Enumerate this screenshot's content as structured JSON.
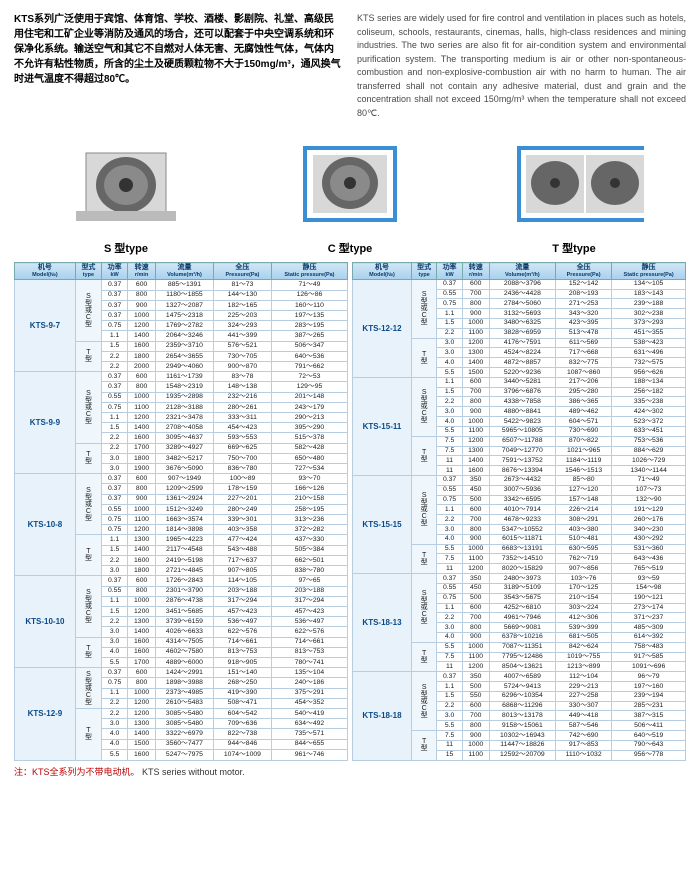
{
  "intro": {
    "cn": "KTS系列广泛使用于宾馆、体育馆、学校、酒楼、影剧院、礼堂、高级民用住宅和工矿企业等消防及通风的场合，还可以配套于中央空调系统和环保净化系统。输送空气和其它不自燃对人体无害、无腐蚀性气体，气体内不允许有粘性物质，所含的尘土及硬质颗粒物不大于150mg/m³，通风换气时进气温度不得超过80℃。",
    "en": "KTS series are widely used for fire control and ventilation in places such as hotels, coliseum, schools, restaurants, cinemas, halls, high-class residences and mining industries. The two series are also fit for air-condition system and environmental purification system. The transporting medium is air or other non-spontaneous-combustion and non-explosive-combustion air with no harm to human. The air transferred shall not contain any adhesive material, dust and grain and the concentration shall not exceed 150mg/m³ when the temperature shall not exceed 80℃."
  },
  "fan_labels": [
    "S 型type",
    "C 型type",
    "T 型type"
  ],
  "headers": {
    "model_cn": "机号",
    "model_en": "Model(№)",
    "type_cn": "型式",
    "type_en": "type",
    "power_cn": "功率",
    "power_en": "kW",
    "speed_cn": "转速",
    "speed_en": "r/min",
    "volume_cn": "流量",
    "volume_en": "Volume(m³/h)",
    "pressure_cn": "全压",
    "pressure_en": "Pressure(Pa)",
    "static_cn": "静压",
    "static_en": "Static pressure(Pa)"
  },
  "left_groups": [
    {
      "model": "KTS-9-7",
      "blocks": [
        {
          "type": "S型或C型",
          "rows": [
            [
              "0.37",
              "600",
              "885～1391",
              "81～73",
              "71～49"
            ],
            [
              "0.37",
              "800",
              "1180～1855",
              "144～130",
              "126～86"
            ],
            [
              "0.37",
              "900",
              "1327～2087",
              "182～165",
              "160～110"
            ],
            [
              "0.37",
              "1000",
              "1475～2318",
              "225～203",
              "197～135"
            ],
            [
              "0.75",
              "1200",
              "1769～2782",
              "324～293",
              "283～195"
            ],
            [
              "1.1",
              "1400",
              "2064～3246",
              "441～399",
              "387～265"
            ]
          ]
        },
        {
          "type": "T型",
          "rows": [
            [
              "1.5",
              "1600",
              "2359～3710",
              "576～521",
              "506～347"
            ],
            [
              "2.2",
              "1800",
              "2654～3655",
              "730～705",
              "640～536"
            ],
            [
              "2.2",
              "2000",
              "2949～4060",
              "900～870",
              "791～662"
            ]
          ]
        }
      ]
    },
    {
      "model": "KTS-9-9",
      "blocks": [
        {
          "type": "S型或C型",
          "rows": [
            [
              "0.37",
              "600",
              "1161～1739",
              "83～78",
              "72～53"
            ],
            [
              "0.37",
              "800",
              "1548～2319",
              "148～138",
              "129～95"
            ],
            [
              "0.55",
              "1000",
              "1935～2898",
              "232～216",
              "201～148"
            ],
            [
              "0.75",
              "1100",
              "2128～3188",
              "280～261",
              "243～179"
            ],
            [
              "1.1",
              "1200",
              "2321～3478",
              "333～311",
              "290～213"
            ],
            [
              "1.5",
              "1400",
              "2708～4058",
              "454～423",
              "395～290"
            ],
            [
              "2.2",
              "1600",
              "3095～4637",
              "593～553",
              "515～378"
            ]
          ]
        },
        {
          "type": "T型",
          "rows": [
            [
              "2.2",
              "1700",
              "3289～4927",
              "669～625",
              "582～428"
            ],
            [
              "3.0",
              "1800",
              "3482～5217",
              "750～700",
              "650～480"
            ],
            [
              "3.0",
              "1900",
              "3676～5090",
              "836～780",
              "727～534"
            ]
          ]
        }
      ]
    },
    {
      "model": "KTS-10-8",
      "blocks": [
        {
          "type": "S型或C型",
          "rows": [
            [
              "0.37",
              "600",
              "907～1949",
              "100～89",
              "93～70"
            ],
            [
              "0.37",
              "800",
              "1209～2599",
              "178～159",
              "166～126"
            ],
            [
              "0.37",
              "900",
              "1361～2924",
              "227～201",
              "210～158"
            ],
            [
              "0.55",
              "1000",
              "1512～3249",
              "280～249",
              "258～195"
            ],
            [
              "0.75",
              "1100",
              "1663～3574",
              "339～301",
              "313～236"
            ],
            [
              "0.75",
              "1200",
              "1814～3898",
              "403～358",
              "372～282"
            ]
          ]
        },
        {
          "type": "T型",
          "rows": [
            [
              "1.1",
              "1300",
              "1965～4223",
              "477～424",
              "437～330"
            ],
            [
              "1.5",
              "1400",
              "2117～4548",
              "543～488",
              "505～384"
            ],
            [
              "2.2",
              "1600",
              "2419～5198",
              "717～637",
              "662～501"
            ],
            [
              "3.0",
              "1800",
              "2721～4845",
              "907～805",
              "838～780"
            ]
          ]
        }
      ]
    },
    {
      "model": "KTS-10-10",
      "blocks": [
        {
          "type": "S型或C型",
          "rows": [
            [
              "0.37",
              "600",
              "1726～2843",
              "114～105",
              "97～65"
            ],
            [
              "0.55",
              "800",
              "2301～3790",
              "203～188",
              "203～188"
            ],
            [
              "1.1",
              "1000",
              "2876～4738",
              "317～294",
              "317～294"
            ],
            [
              "1.5",
              "1200",
              "3451～5685",
              "457～423",
              "457～423"
            ],
            [
              "2.2",
              "1300",
              "3739～6159",
              "536～497",
              "536～497"
            ],
            [
              "3.0",
              "1400",
              "4026～6633",
              "622～576",
              "622～576"
            ]
          ]
        },
        {
          "type": "T型",
          "rows": [
            [
              "3.0",
              "1600",
              "4314～7505",
              "714～661",
              "714～661"
            ],
            [
              "4.0",
              "1600",
              "4602～7580",
              "813～753",
              "813～753"
            ],
            [
              "5.5",
              "1700",
              "4889～6000",
              "918～905",
              "780～741"
            ]
          ]
        }
      ]
    },
    {
      "model": "KTS-12-9",
      "blocks": [
        {
          "type": "S型或C型",
          "rows": [
            [
              "0.37",
              "600",
              "1424～2991",
              "151～140",
              "135～104"
            ],
            [
              "0.75",
              "800",
              "1898～3988",
              "268～250",
              "240～186"
            ],
            [
              "1.1",
              "1000",
              "2373～4985",
              "419～390",
              "375～291"
            ],
            [
              "2.2",
              "1200",
              "2610～5483",
              "508～471",
              "454～352"
            ]
          ]
        },
        {
          "type": "T型",
          "rows": [
            [
              "2.2",
              "1200",
              "3085～5480",
              "604～542",
              "540～419"
            ],
            [
              "3.0",
              "1300",
              "3085～5480",
              "709～636",
              "634～492"
            ],
            [
              "4.0",
              "1400",
              "3322～6979",
              "822～738",
              "735～571"
            ],
            [
              "4.0",
              "1500",
              "3560～7477",
              "944～846",
              "844～655"
            ],
            [
              "5.5",
              "1600",
              "5247～7975",
              "1074～1009",
              "961～746"
            ]
          ]
        }
      ]
    }
  ],
  "right_groups": [
    {
      "model": "KTS-12-12",
      "blocks": [
        {
          "type": "S型或C型",
          "rows": [
            [
              "0.37",
              "600",
              "2088～3796",
              "152～142",
              "134～105"
            ],
            [
              "0.55",
              "700",
              "2436～4428",
              "208～193",
              "183～143"
            ],
            [
              "0.75",
              "800",
              "2784～5060",
              "271～253",
              "239～188"
            ],
            [
              "1.1",
              "900",
              "3132～5693",
              "343～320",
              "302～238"
            ],
            [
              "1.5",
              "1000",
              "3480～6325",
              "423～395",
              "373～293"
            ],
            [
              "2.2",
              "1100",
              "3828～6959",
              "513～478",
              "451～355"
            ]
          ]
        },
        {
          "type": "T型",
          "rows": [
            [
              "3.0",
              "1200",
              "4176～7591",
              "611～569",
              "538～423"
            ],
            [
              "3.0",
              "1300",
              "4524～8224",
              "717～668",
              "631～496"
            ],
            [
              "4.0",
              "1400",
              "4872～8857",
              "832～775",
              "732～575"
            ],
            [
              "5.5",
              "1500",
              "5220～9236",
              "1087～860",
              "956～626"
            ]
          ]
        }
      ]
    },
    {
      "model": "KTS-15-11",
      "blocks": [
        {
          "type": "S型或C型",
          "rows": [
            [
              "1.1",
              "600",
              "3440～5281",
              "217～206",
              "188～134"
            ],
            [
              "1.5",
              "700",
              "3796～6876",
              "295～280",
              "256～182"
            ],
            [
              "2.2",
              "800",
              "4338～7858",
              "386～365",
              "335～238"
            ],
            [
              "3.0",
              "900",
              "4880～8841",
              "489～462",
              "424～302"
            ],
            [
              "4.0",
              "1000",
              "5422～9823",
              "604～571",
              "523～372"
            ],
            [
              "5.5",
              "1100",
              "5965～10805",
              "730～690",
              "633～451"
            ]
          ]
        },
        {
          "type": "T型",
          "rows": [
            [
              "7.5",
              "1200",
              "6507～11788",
              "870～822",
              "753～536"
            ],
            [
              "7.5",
              "1300",
              "7049～12770",
              "1021～965",
              "884～629"
            ],
            [
              "11",
              "1400",
              "7591～13752",
              "1184～1119",
              "1026～729"
            ],
            [
              "11",
              "1600",
              "8676～13394",
              "1546～1513",
              "1340～1144"
            ]
          ]
        }
      ]
    },
    {
      "model": "KTS-15-15",
      "blocks": [
        {
          "type": "S型或C型",
          "rows": [
            [
              "0.37",
              "350",
              "2673～4432",
              "85～80",
              "71～49"
            ],
            [
              "0.55",
              "450",
              "3007～5936",
              "127～120",
              "107～73"
            ],
            [
              "0.75",
              "500",
              "3342～6595",
              "157～148",
              "132～90"
            ],
            [
              "1.1",
              "600",
              "4010～7914",
              "226～214",
              "191～129"
            ],
            [
              "2.2",
              "700",
              "4678～9233",
              "308～291",
              "260～176"
            ],
            [
              "3.0",
              "800",
              "5347～10552",
              "403～380",
              "340～230"
            ],
            [
              "4.0",
              "900",
              "6015～11871",
              "510～481",
              "430～292"
            ]
          ]
        },
        {
          "type": "T型",
          "rows": [
            [
              "5.5",
              "1000",
              "6683～13191",
              "630～595",
              "531～360"
            ],
            [
              "7.5",
              "1100",
              "7352～14510",
              "762～719",
              "643～436"
            ],
            [
              "11",
              "1200",
              "8020～15829",
              "907～856",
              "765～519"
            ]
          ]
        }
      ]
    },
    {
      "model": "KTS-18-13",
      "blocks": [
        {
          "type": "S型或C型",
          "rows": [
            [
              "0.37",
              "350",
              "2480～3973",
              "103～76",
              "93～59"
            ],
            [
              "0.55",
              "450",
              "3189～5109",
              "170～125",
              "154～98"
            ],
            [
              "0.75",
              "500",
              "3543～5675",
              "210～154",
              "190～121"
            ],
            [
              "1.1",
              "600",
              "4252～6810",
              "303～224",
              "273～174"
            ],
            [
              "2.2",
              "700",
              "4961～7946",
              "412～306",
              "371～237"
            ],
            [
              "3.0",
              "800",
              "5669～9081",
              "539～399",
              "485～309"
            ],
            [
              "4.0",
              "900",
              "6378～10216",
              "681～505",
              "614～392"
            ]
          ]
        },
        {
          "type": "T型",
          "rows": [
            [
              "5.5",
              "1000",
              "7087～11351",
              "842～624",
              "758～483"
            ],
            [
              "7.5",
              "1100",
              "7795～12486",
              "1019～755",
              "917～585"
            ],
            [
              "11",
              "1200",
              "8504～13621",
              "1213～899",
              "1091～696"
            ]
          ]
        }
      ]
    },
    {
      "model": "KTS-18-18",
      "blocks": [
        {
          "type": "S型或C型",
          "rows": [
            [
              "0.37",
              "350",
              "4007～6589",
              "112～104",
              "96～79"
            ],
            [
              "1.1",
              "500",
              "5724～9413",
              "229～213",
              "197～160"
            ],
            [
              "1.5",
              "550",
              "6296～10354",
              "227～258",
              "239～194"
            ],
            [
              "2.2",
              "600",
              "6868～11296",
              "330～307",
              "285～231"
            ],
            [
              "3.0",
              "700",
              "8013～13178",
              "449～418",
              "387～315"
            ],
            [
              "5.5",
              "800",
              "9158～15061",
              "587～546",
              "506～411"
            ]
          ]
        },
        {
          "type": "T型",
          "rows": [
            [
              "7.5",
              "900",
              "10302～16943",
              "742～690",
              "640～519"
            ],
            [
              "11",
              "1000",
              "11447～18826",
              "917～853",
              "790～643"
            ],
            [
              "15",
              "1100",
              "12592～20709",
              "1110～1032",
              "956～778"
            ]
          ]
        }
      ]
    }
  ],
  "footer": {
    "cn": "注：KTS全系列为不带电动机。",
    "en": "KTS series without motor."
  },
  "colors": {
    "header_bg": "#c0ddf0",
    "model_bg": "#e8f2fa",
    "border": "#b8cde0",
    "blue_frame": "#3a8fd4"
  }
}
